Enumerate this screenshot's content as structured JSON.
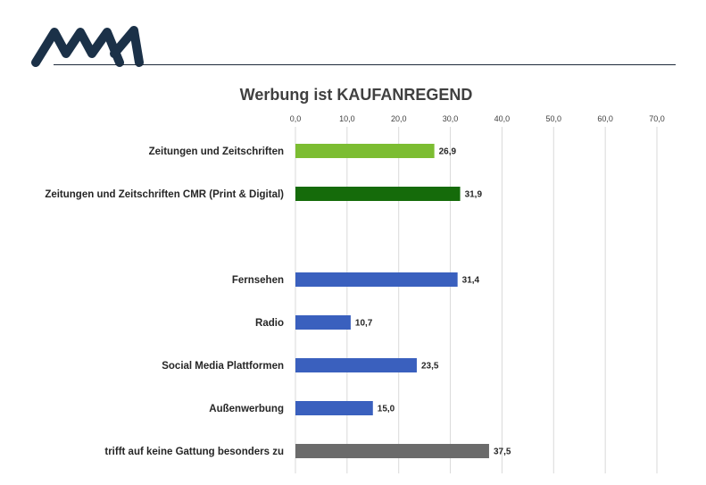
{
  "brand": {
    "logo_text": "MA"
  },
  "colors": {
    "print": "#7cbd32",
    "print_cmr": "#156b0a",
    "media": "#3a60be",
    "none": "#6b6b6b",
    "grid": "#d9d9d9",
    "header_rule": "#1e2a3a",
    "logo": "#1b3148"
  },
  "chart_data": {
    "type": "bar",
    "orientation": "horizontal",
    "title": "Werbung ist KAUFANREGEND",
    "xlim": [
      0,
      70
    ],
    "ticks": [
      "0,0",
      "10,0",
      "20,0",
      "30,0",
      "40,0",
      "50,0",
      "60,0",
      "70,0"
    ],
    "grid": true,
    "categories": [
      "Zeitungen und Zeitschriften",
      "Zeitungen und Zeitschriften CMR (Print & Digital)",
      "",
      "Fernsehen",
      "Radio",
      "Social Media Plattformen",
      "Außenwerbung",
      "trifft auf keine Gattung besonders zu"
    ],
    "values": [
      26.9,
      31.9,
      null,
      31.4,
      10.7,
      23.5,
      15.0,
      37.5
    ],
    "value_labels": [
      "26,9",
      "31,9",
      "",
      "31,4",
      "10,7",
      "23,5",
      "15,0",
      "37,5"
    ],
    "bar_colors": [
      "print",
      "print_cmr",
      "",
      "media",
      "media",
      "media",
      "media",
      "none"
    ]
  }
}
